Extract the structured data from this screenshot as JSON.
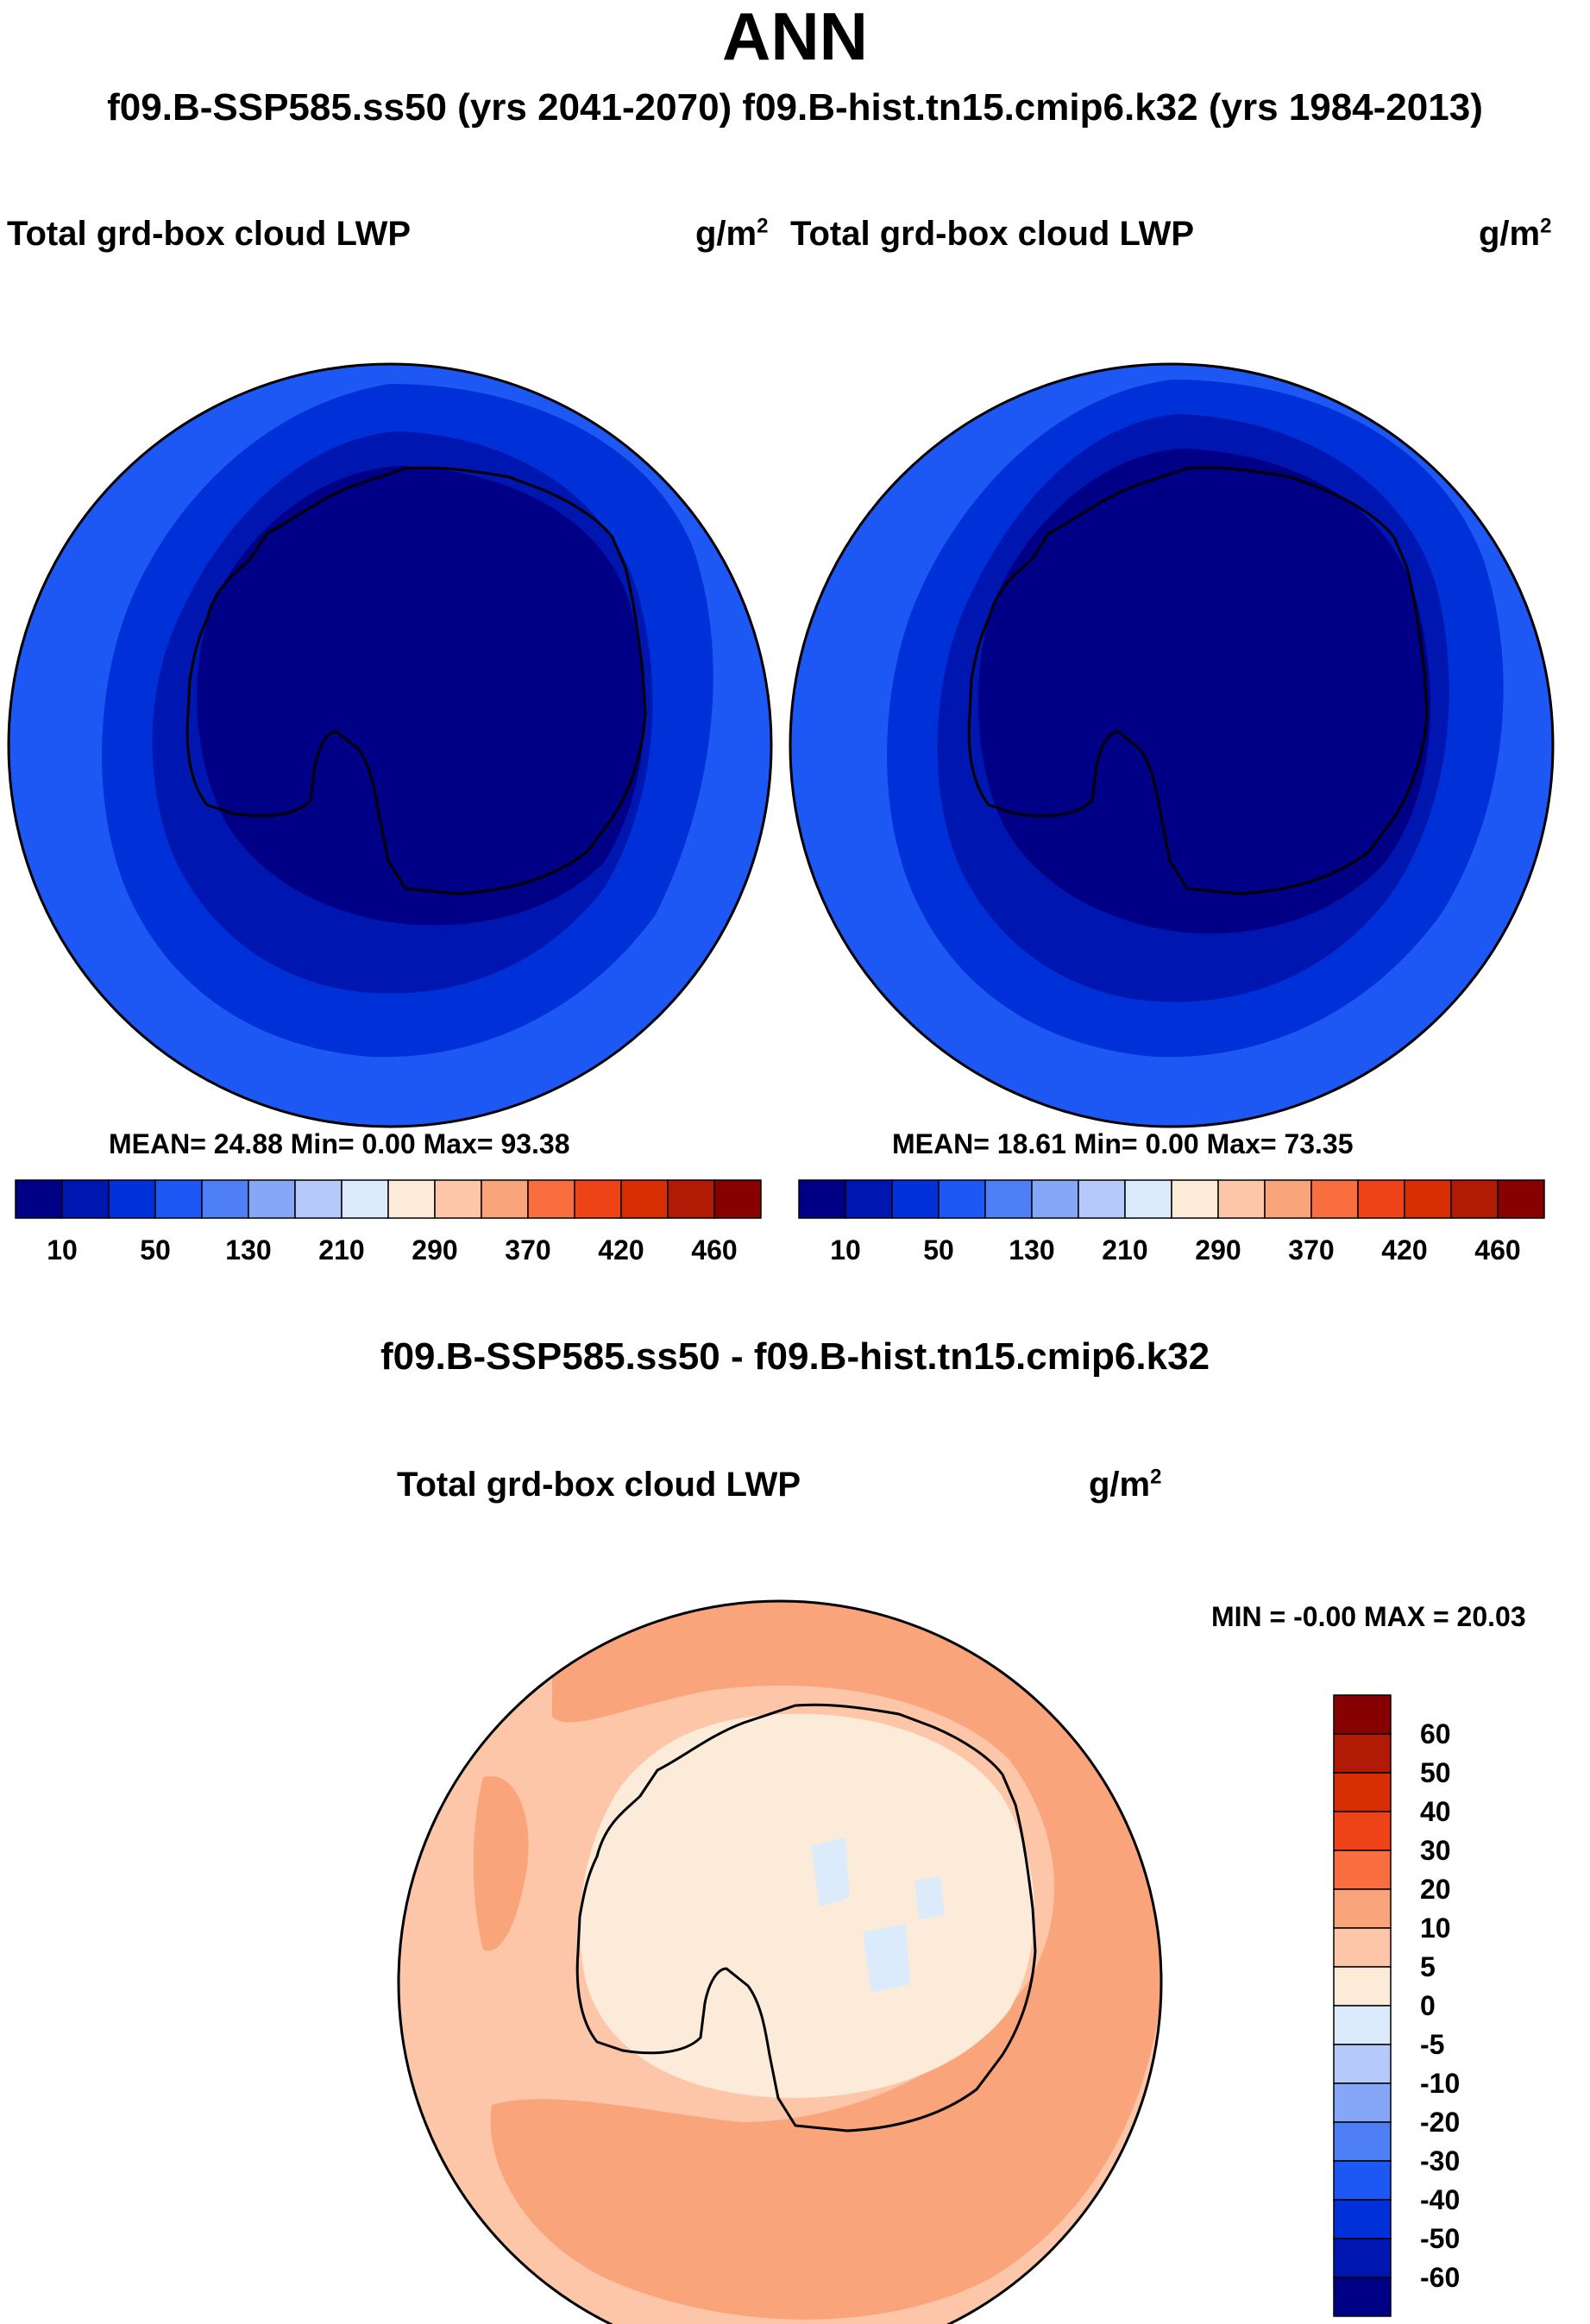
{
  "header": {
    "title": "ANN",
    "subtitle": "f09.B-SSP585.ss50 (yrs 2041-2070)  f09.B-hist.tn15.cmip6.k32 (yrs 1984-2013)"
  },
  "panels": [
    {
      "variable": "Total grd-box cloud LWP",
      "unit_base": "g/m",
      "unit_exp": "2",
      "stats": "MEAN=  24.88  Min=   0.00  Max=  93.38"
    },
    {
      "variable": "Total grd-box cloud LWP",
      "unit_base": "g/m",
      "unit_exp": "2",
      "stats": "MEAN=  18.61  Min=   0.00  Max=  73.35"
    }
  ],
  "abs_colorbar": {
    "colors": [
      "#000086",
      "#0016b0",
      "#0030d8",
      "#1d57f4",
      "#4f7ff7",
      "#86a6f8",
      "#b5c9fa",
      "#dcebfc",
      "#fdebda",
      "#fdc6a8",
      "#f9a47b",
      "#f86e3f",
      "#ee4217",
      "#d72e03",
      "#b11b06",
      "#870103"
    ],
    "tick_labels": [
      "10",
      "50",
      "130",
      "210",
      "290",
      "370",
      "420",
      "460"
    ]
  },
  "difference": {
    "title": "f09.B-SSP585.ss50 - f09.B-hist.tn15.cmip6.k32",
    "variable": "Total grd-box cloud LWP",
    "unit_base": "g/m",
    "unit_exp": "2",
    "stats": "MIN =  -0.00 MAX =  20.03",
    "colorbar": {
      "colors_top_to_bottom": [
        "#870103",
        "#b11b06",
        "#d72e03",
        "#ee4217",
        "#f86e3f",
        "#f9a47b",
        "#fdc6a8",
        "#fdebda",
        "#dcebfc",
        "#b5c9fa",
        "#86a6f8",
        "#4f7ff7",
        "#1d57f4",
        "#0030d8",
        "#0016b0",
        "#000086"
      ],
      "tick_labels": [
        "60",
        "50",
        "40",
        "30",
        "20",
        "10",
        "5",
        "0",
        "-5",
        "-10",
        "-20",
        "-30",
        "-40",
        "-50",
        "-60"
      ]
    }
  }
}
